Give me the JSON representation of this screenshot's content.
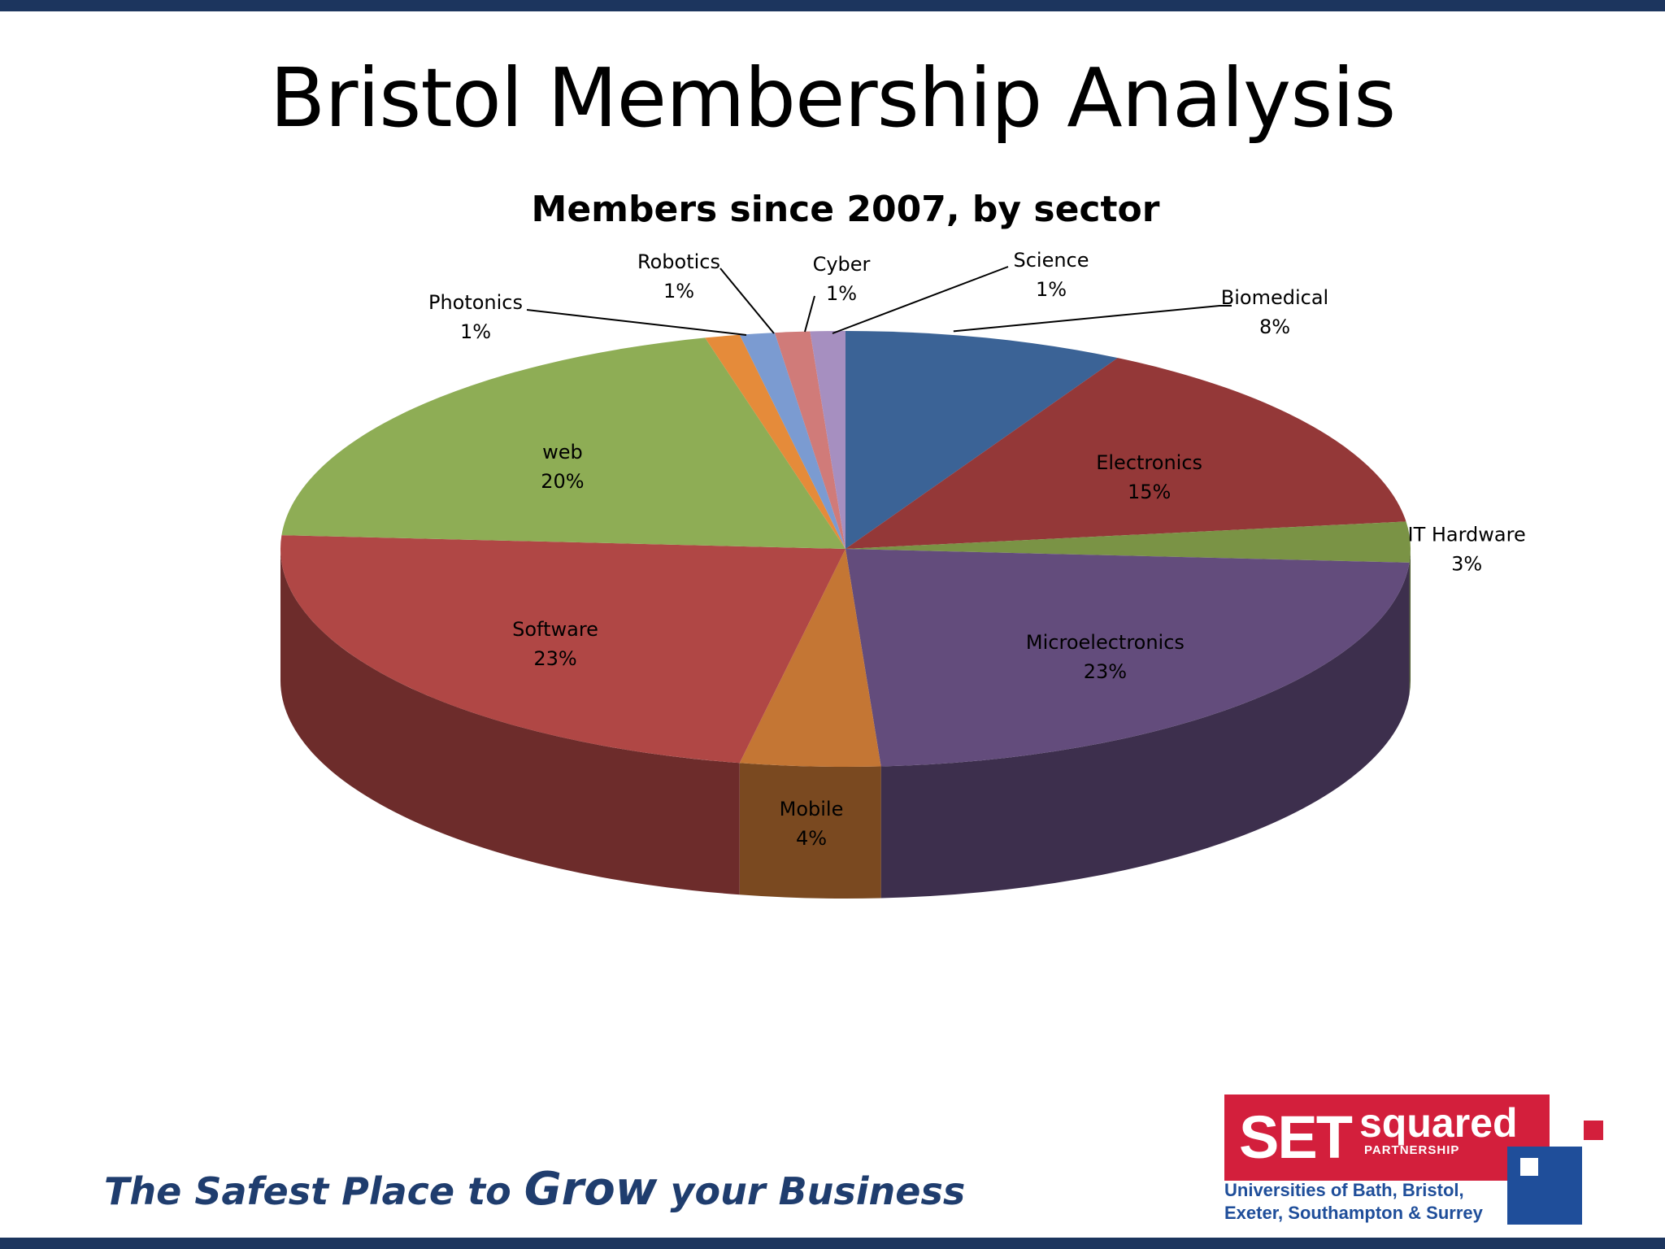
{
  "slide": {
    "title": "Bristol Membership Analysis",
    "tagline_part1": "The Safest Place to ",
    "tagline_grow": "Grow",
    "tagline_part2": " your Business"
  },
  "logo": {
    "set": "SET",
    "squared": "squared",
    "partnership": "PARTNERSHIP",
    "universities_line1": "Universities of Bath, Bristol,",
    "universities_line2": "Exeter, Southampton & Surrey"
  },
  "colors": {
    "bars": "#1c355e",
    "tagline": "#1f3d6e",
    "logo_red": "#d31f3c",
    "logo_blue": "#1f4e9a"
  },
  "chart_data": {
    "type": "pie",
    "title": "Members since 2007, by sector",
    "three_d": true,
    "slices": [
      {
        "label": "Biomedical",
        "value": 8,
        "value_label": "8%",
        "color": "#3b6396"
      },
      {
        "label": "Electronics",
        "value": 15,
        "value_label": "15%",
        "color": "#943838"
      },
      {
        "label": "IT Hardware",
        "value": 3,
        "value_label": "3%",
        "color": "#7a9345"
      },
      {
        "label": "Microelectronics",
        "value": 23,
        "value_label": "23%",
        "color": "#634c7c"
      },
      {
        "label": "Mobile",
        "value": 4,
        "value_label": "4%",
        "color": "#c47634"
      },
      {
        "label": "Software",
        "value": 23,
        "value_label": "23%",
        "color": "#b04745"
      },
      {
        "label": "web",
        "value": 20,
        "value_label": "20%",
        "color": "#8ead55"
      },
      {
        "label": "Photonics",
        "value": 1,
        "value_label": "1%",
        "color": "#e58b3a"
      },
      {
        "label": "Robotics",
        "value": 1,
        "value_label": "1%",
        "color": "#7b9bd1"
      },
      {
        "label": "Cyber",
        "value": 1,
        "value_label": "1%",
        "color": "#d07b79"
      },
      {
        "label": "Science",
        "value": 1,
        "value_label": "1%",
        "color": "#a68fc0"
      }
    ]
  }
}
